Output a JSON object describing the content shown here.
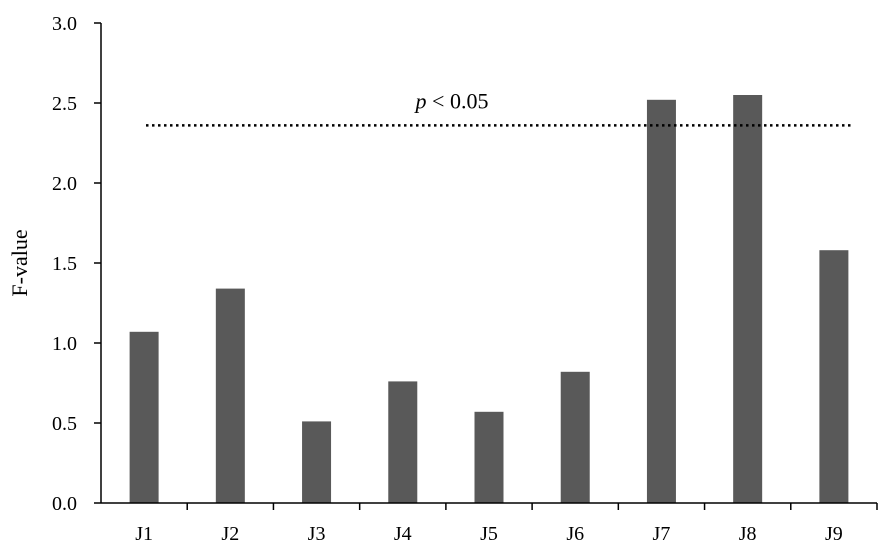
{
  "chart_data": {
    "type": "bar",
    "categories": [
      "J1",
      "J2",
      "J3",
      "J4",
      "J5",
      "J6",
      "J7",
      "J8",
      "J9"
    ],
    "values": [
      1.07,
      1.34,
      0.51,
      0.76,
      0.57,
      0.82,
      2.52,
      2.55,
      1.58
    ],
    "ylabel": "F-value",
    "xlabel": "",
    "title": "",
    "ylim": [
      0,
      3.0
    ],
    "yticks": [
      "0.0",
      "0.5",
      "1.0",
      "1.5",
      "2.0",
      "2.5",
      "3.0"
    ],
    "grid": false,
    "bar_color": "#595959",
    "threshold": {
      "value": 2.36,
      "label_p": "p",
      "label_rest": " < 0.05",
      "style": "dotted"
    }
  }
}
